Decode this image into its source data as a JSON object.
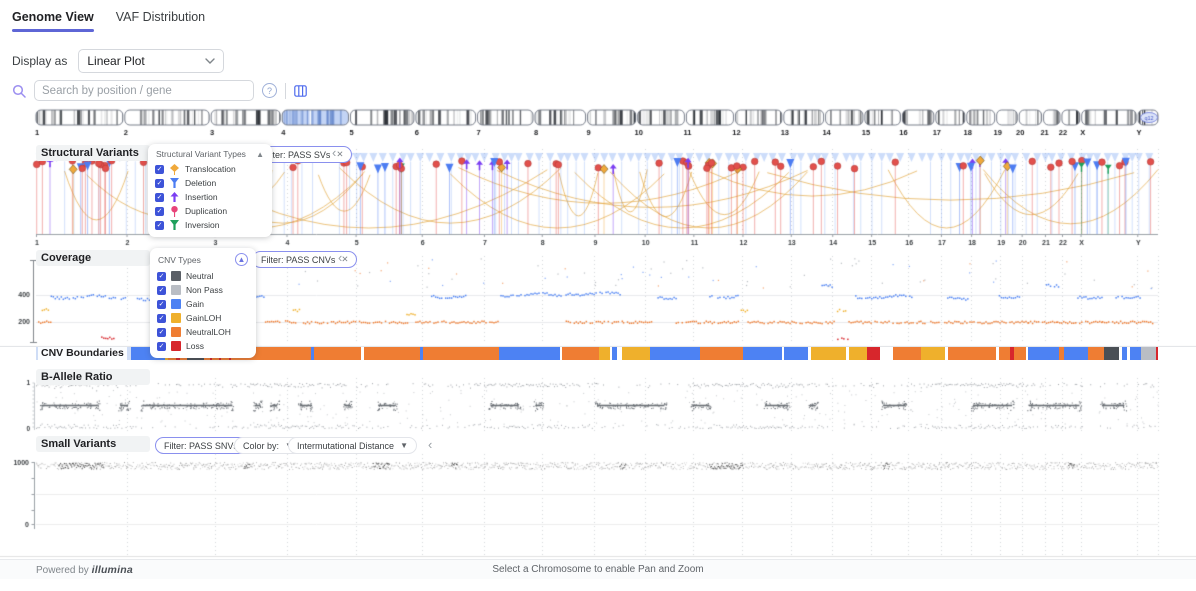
{
  "tabs": [
    {
      "label": "Genome View",
      "active": true
    },
    {
      "label": "VAF Distribution",
      "active": false
    }
  ],
  "controls": {
    "display_as_label": "Display as",
    "display_as_value": "Linear Plot"
  },
  "search": {
    "placeholder": "Search by position / gene"
  },
  "ideogram": {
    "selected_chromosome": "4",
    "band_label": "q12"
  },
  "chromosomes": [
    {
      "name": "1",
      "size": 249
    },
    {
      "name": "2",
      "size": 242
    },
    {
      "name": "3",
      "size": 198
    },
    {
      "name": "4",
      "size": 190
    },
    {
      "name": "5",
      "size": 182
    },
    {
      "name": "6",
      "size": 171
    },
    {
      "name": "7",
      "size": 159
    },
    {
      "name": "8",
      "size": 145
    },
    {
      "name": "9",
      "size": 138
    },
    {
      "name": "10",
      "size": 134
    },
    {
      "name": "11",
      "size": 135
    },
    {
      "name": "12",
      "size": 133
    },
    {
      "name": "13",
      "size": 114
    },
    {
      "name": "14",
      "size": 107
    },
    {
      "name": "15",
      "size": 102
    },
    {
      "name": "16",
      "size": 90
    },
    {
      "name": "17",
      "size": 83
    },
    {
      "name": "18",
      "size": 80
    },
    {
      "name": "19",
      "size": 59
    },
    {
      "name": "20",
      "size": 64
    },
    {
      "name": "21",
      "size": 47
    },
    {
      "name": "22",
      "size": 51
    },
    {
      "name": "X",
      "size": 156
    },
    {
      "name": "Y",
      "size": 57
    }
  ],
  "colors": {
    "accent": "#5E66D6",
    "arc": "#E2A43C",
    "selected_chromosome_fill": "#C3D4F5",
    "baf_dot": "#7D838A",
    "cnv": {
      "lead": "#CFDDF6",
      "gain": "#4D82F3",
      "nloh": "#EF7D33",
      "gloh": "#EFB02C",
      "loss": "#D7262C",
      "dark": "#4A4F55",
      "light": "#B9BDC4",
      "neutral": "#5A5F66"
    }
  },
  "tracks": {
    "structural_variants": {
      "title": "Structural Variants",
      "legend_title": "Structural Variant Types",
      "legend_items": [
        {
          "label": "Translocation",
          "color": "#F0A93B",
          "glyph": "diamond"
        },
        {
          "label": "Deletion",
          "color": "#4D7DF2",
          "glyph": "funnel"
        },
        {
          "label": "Insertion",
          "color": "#7B3FF2",
          "glyph": "arrow-up"
        },
        {
          "label": "Duplication",
          "color": "#E8447A",
          "glyph": "lollipop"
        },
        {
          "label": "Inversion",
          "color": "#1FA05C",
          "glyph": "funnel"
        }
      ],
      "filter_chip": "Filter: PASS SVs",
      "marker_count": 100,
      "band_seed": 11,
      "arc_count": 24
    },
    "coverage": {
      "title": "Coverage",
      "legend_title": "CNV Types",
      "legend_items": [
        {
          "label": "Neutral",
          "color": "#5A5F66"
        },
        {
          "label": "Non Pass",
          "color": "#B9BDC4"
        },
        {
          "label": "Gain",
          "color": "#4D82F3"
        },
        {
          "label": "GainLOH",
          "color": "#EFB02C"
        },
        {
          "label": "NeutralLOH",
          "color": "#EF7D33"
        },
        {
          "label": "Loss",
          "color": "#D7262C"
        }
      ],
      "filter_chip": "Filter: PASS CNVs",
      "y_ticks": [
        "400",
        "200"
      ],
      "segments": [
        [
          0.0,
          0.017,
          205,
          "nloh"
        ],
        [
          0.005,
          0.011,
          295,
          "gloh"
        ],
        [
          0.013,
          0.08,
          390,
          "gain"
        ],
        [
          0.058,
          0.07,
          85,
          "loss"
        ],
        [
          0.088,
          0.104,
          380,
          "gain"
        ],
        [
          0.104,
          0.124,
          205,
          "nloh"
        ],
        [
          0.124,
          0.204,
          390,
          "gain"
        ],
        [
          0.148,
          0.157,
          80,
          "loss"
        ],
        [
          0.204,
          0.232,
          205,
          "nloh"
        ],
        [
          0.227,
          0.235,
          290,
          "gloh"
        ],
        [
          0.236,
          0.334,
          202,
          "nloh"
        ],
        [
          0.33,
          0.338,
          265,
          "gloh"
        ],
        [
          0.338,
          0.412,
          203,
          "nloh"
        ],
        [
          0.352,
          0.384,
          395,
          "gain"
        ],
        [
          0.412,
          0.468,
          405,
          "gain"
        ],
        [
          0.47,
          0.52,
          415,
          "gain"
        ],
        [
          0.472,
          0.523,
          203,
          "nloh"
        ],
        [
          0.523,
          0.548,
          202,
          "nloh"
        ],
        [
          0.552,
          0.57,
          390,
          "gain"
        ],
        [
          0.57,
          0.628,
          203,
          "nloh"
        ],
        [
          0.6,
          0.625,
          395,
          "gain"
        ],
        [
          0.628,
          0.634,
          290,
          "gloh"
        ],
        [
          0.634,
          0.712,
          202,
          "nloh"
        ],
        [
          0.7,
          0.71,
          480,
          "gain"
        ],
        [
          0.712,
          0.722,
          290,
          "gloh"
        ],
        [
          0.714,
          0.724,
          85,
          "loss"
        ],
        [
          0.724,
          0.788,
          203,
          "nloh"
        ],
        [
          0.73,
          0.78,
          390,
          "gain"
        ],
        [
          0.788,
          0.83,
          203,
          "nloh"
        ],
        [
          0.812,
          0.83,
          385,
          "gain"
        ],
        [
          0.83,
          0.884,
          202,
          "nloh"
        ],
        [
          0.858,
          0.876,
          395,
          "gain"
        ],
        [
          0.884,
          0.91,
          203,
          "nloh"
        ],
        [
          0.9,
          0.912,
          480,
          "gain"
        ],
        [
          0.91,
          0.95,
          202,
          "nloh"
        ],
        [
          0.928,
          0.95,
          390,
          "gain"
        ],
        [
          0.95,
          0.996,
          203,
          "nloh"
        ],
        [
          0.962,
          0.985,
          392,
          "gain"
        ]
      ]
    },
    "cnv_boundaries": {
      "label": "CNV Boundaries",
      "segments": [
        [
          0.0,
          0.085,
          "lead"
        ],
        [
          0.085,
          0.115,
          "gain"
        ],
        [
          0.115,
          0.118,
          "gloh"
        ],
        [
          0.118,
          0.135,
          "nloh"
        ],
        [
          0.135,
          0.15,
          "dark"
        ],
        [
          0.15,
          0.245,
          "nloh"
        ],
        [
          0.245,
          0.248,
          "gain"
        ],
        [
          0.248,
          0.29,
          "nloh"
        ],
        [
          0.292,
          0.342,
          "nloh"
        ],
        [
          0.342,
          0.345,
          "gain"
        ],
        [
          0.345,
          0.413,
          "nloh"
        ],
        [
          0.413,
          0.467,
          "gain"
        ],
        [
          0.469,
          0.502,
          "nloh"
        ],
        [
          0.502,
          0.512,
          "gloh"
        ],
        [
          0.513,
          0.518,
          "gain"
        ],
        [
          0.522,
          0.547,
          "gloh"
        ],
        [
          0.547,
          0.592,
          "gain"
        ],
        [
          0.592,
          0.63,
          "nloh"
        ],
        [
          0.63,
          0.665,
          "gain"
        ],
        [
          0.667,
          0.688,
          "gain"
        ],
        [
          0.691,
          0.722,
          "gloh"
        ],
        [
          0.725,
          0.741,
          "gloh"
        ],
        [
          0.741,
          0.752,
          "loss"
        ],
        [
          0.764,
          0.789,
          "nloh"
        ],
        [
          0.789,
          0.81,
          "gloh"
        ],
        [
          0.813,
          0.856,
          "nloh"
        ],
        [
          0.858,
          0.868,
          "nloh"
        ],
        [
          0.868,
          0.872,
          "loss"
        ],
        [
          0.872,
          0.882,
          "nloh"
        ],
        [
          0.884,
          0.912,
          "gain"
        ],
        [
          0.912,
          0.916,
          "nloh"
        ],
        [
          0.916,
          0.938,
          "gain"
        ],
        [
          0.938,
          0.952,
          "nloh"
        ],
        [
          0.952,
          0.965,
          "dark"
        ],
        [
          0.968,
          0.972,
          "gain"
        ],
        [
          0.975,
          0.985,
          "gain"
        ],
        [
          0.985,
          0.998,
          "light"
        ],
        [
          0.998,
          1.0,
          "loss"
        ],
        [
          0.155,
          0.157,
          "loss"
        ],
        [
          0.163,
          0.165,
          "loss"
        ],
        [
          0.172,
          0.174,
          "loss"
        ],
        [
          0.125,
          0.128,
          "loss"
        ]
      ]
    },
    "b_allele": {
      "title": "B-Allele Ratio",
      "y_ticks": [
        "1",
        "0"
      ],
      "mid_clusters": [
        [
          0.005,
          0.055
        ],
        [
          0.075,
          0.082
        ],
        [
          0.095,
          0.175
        ],
        [
          0.195,
          0.2
        ],
        [
          0.21,
          0.215
        ],
        [
          0.235,
          0.245
        ],
        [
          0.275,
          0.28
        ],
        [
          0.305,
          0.32
        ],
        [
          0.405,
          0.43
        ],
        [
          0.445,
          0.45
        ],
        [
          0.5,
          0.56
        ],
        [
          0.585,
          0.6
        ],
        [
          0.65,
          0.67
        ],
        [
          0.69,
          0.695
        ],
        [
          0.755,
          0.775
        ],
        [
          0.835,
          0.87
        ],
        [
          0.885,
          0.93
        ],
        [
          0.95,
          0.97
        ]
      ],
      "seed": 3
    },
    "small_variants": {
      "title": "Small Variants",
      "filter_chip": "Filter: PASS SNVs",
      "color_by_label": "Color by:",
      "color_by_value": "Intermutational Distance",
      "y_ticks": [
        "1000",
        "0"
      ],
      "dark_ranges": [
        [
          0.02,
          0.06
        ],
        [
          0.185,
          0.19
        ],
        [
          0.3,
          0.315
        ],
        [
          0.37,
          0.375
        ],
        [
          0.52,
          0.525
        ],
        [
          0.6,
          0.63
        ],
        [
          0.755,
          0.76
        ],
        [
          0.92,
          0.925
        ]
      ],
      "seed": 5
    }
  },
  "footer": {
    "powered_by": "Powered by",
    "brand": "illumina",
    "message": "Select a Chromosome to enable Pan and Zoom"
  }
}
